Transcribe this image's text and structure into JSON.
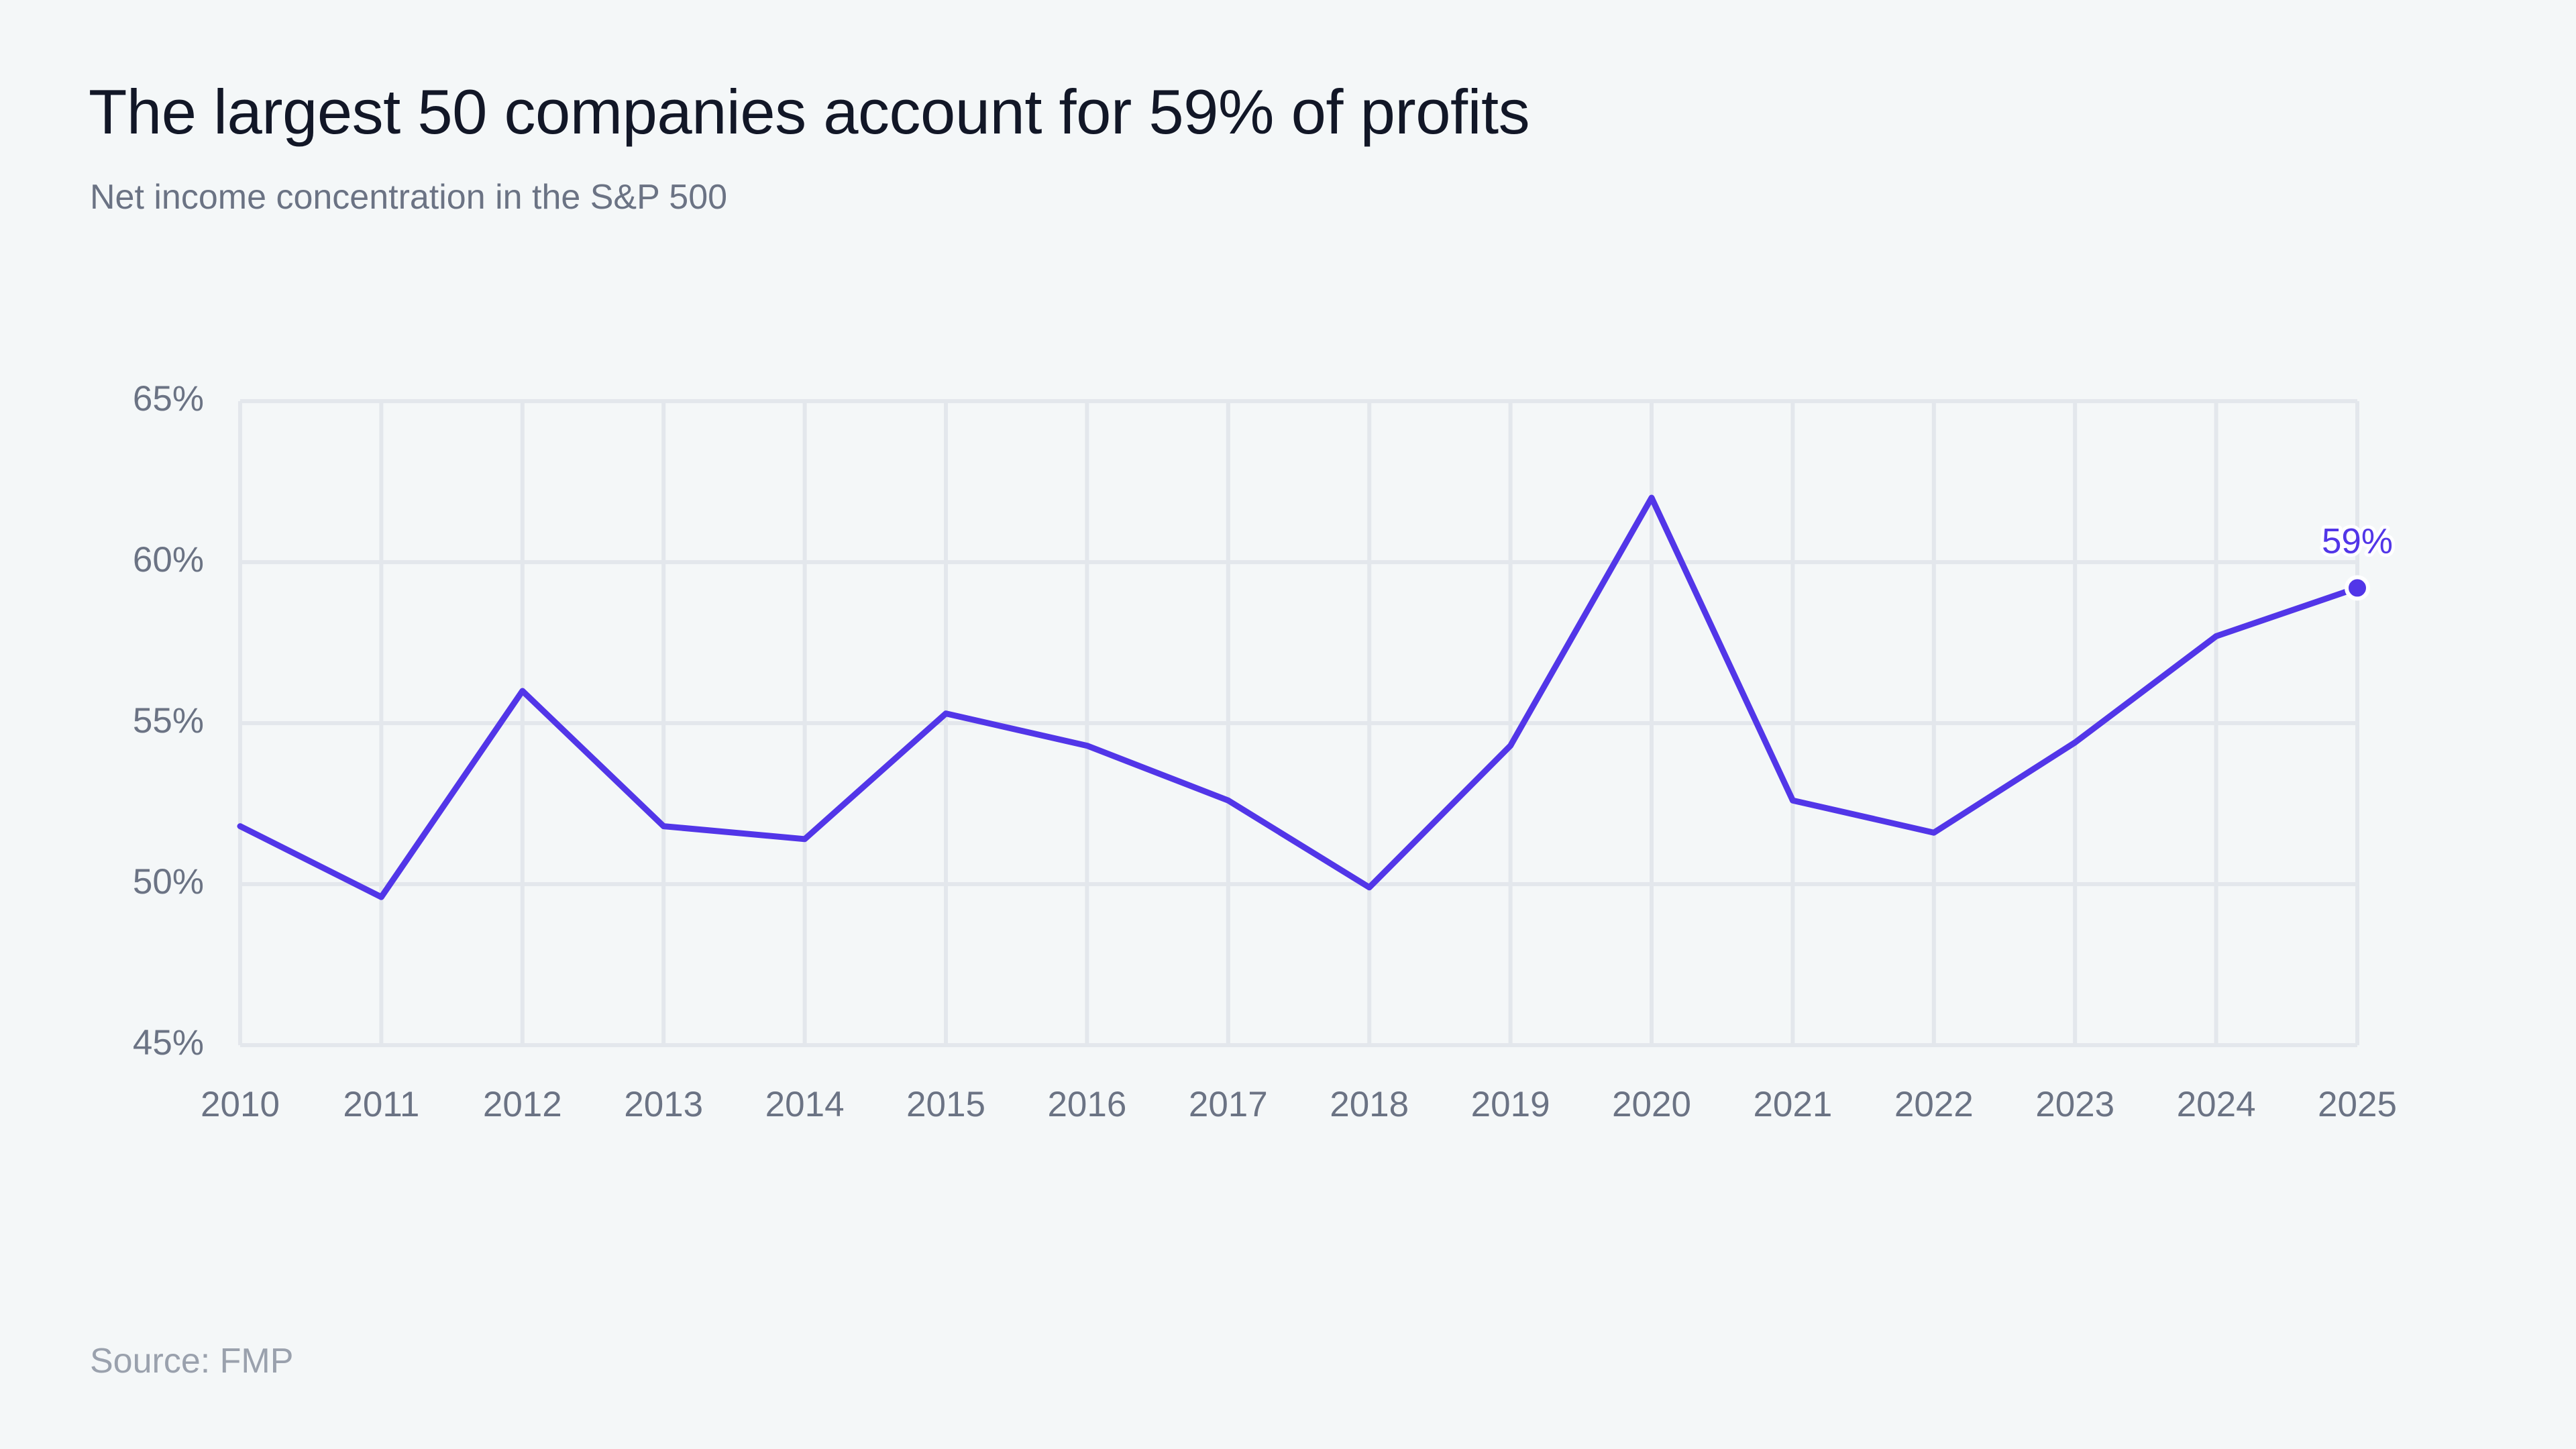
{
  "title": "The largest 50 companies account for 59% of profits",
  "subtitle": "Net income concentration in the S&P 500",
  "source": "Source: FMP",
  "colors": {
    "series": "#5236e8",
    "grid": "#e3e7ec",
    "tick_text": "#6b7384"
  },
  "chart_data": {
    "type": "line",
    "title": "The largest 50 companies account for 59% of profits",
    "subtitle": "Net income concentration in the S&P 500",
    "xlabel": "",
    "ylabel": "",
    "x": [
      "2010",
      "2011",
      "2012",
      "2013",
      "2014",
      "2015",
      "2016",
      "2017",
      "2018",
      "2019",
      "2020",
      "2021",
      "2022",
      "2023",
      "2024",
      "2025"
    ],
    "series": [
      {
        "values": [
          51.8,
          49.6,
          56.0,
          51.8,
          51.4,
          55.3,
          54.3,
          52.6,
          49.9,
          54.3,
          62.0,
          52.6,
          51.6,
          54.4,
          57.7,
          59.2
        ]
      }
    ],
    "ylim": [
      45,
      65
    ],
    "yticks": [
      45,
      50,
      55,
      60,
      65
    ],
    "ytick_labels": [
      "45%",
      "50%",
      "55%",
      "60%",
      "65%"
    ],
    "grid": true,
    "legend": "none",
    "end_label": "59%",
    "source": "Source: FMP"
  }
}
